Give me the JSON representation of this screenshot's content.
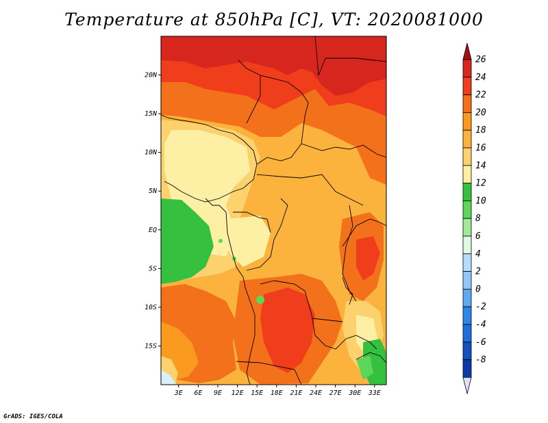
{
  "title": "Temperature at 850hPa [C], VT: 2020081000",
  "credit": "GrADS: IGES/COLA",
  "map": {
    "lat_ticks": [
      {
        "value": 20,
        "label": "20N"
      },
      {
        "value": 15,
        "label": "15N"
      },
      {
        "value": 10,
        "label": "10N"
      },
      {
        "value": 5,
        "label": "5N"
      },
      {
        "value": 0,
        "label": "EQ"
      },
      {
        "value": -5,
        "label": "5S"
      },
      {
        "value": -10,
        "label": "10S"
      },
      {
        "value": -15,
        "label": "15S"
      }
    ],
    "lon_ticks": [
      {
        "value": 3,
        "label": "3E"
      },
      {
        "value": 6,
        "label": "6E"
      },
      {
        "value": 9,
        "label": "9E"
      },
      {
        "value": 12,
        "label": "12E"
      },
      {
        "value": 15,
        "label": "15E"
      },
      {
        "value": 18,
        "label": "18E"
      },
      {
        "value": 21,
        "label": "21E"
      },
      {
        "value": 24,
        "label": "24E"
      },
      {
        "value": 27,
        "label": "27E"
      },
      {
        "value": 30,
        "label": "30E"
      },
      {
        "value": 33,
        "label": "33E"
      }
    ],
    "lon_range": [
      0.3,
      34.8
    ],
    "lat_range": [
      -20,
      25
    ]
  },
  "colorbar": {
    "levels": [
      {
        "label": "26",
        "color": "#d7261e"
      },
      {
        "label": "24",
        "color": "#f03e1c"
      },
      {
        "label": "22",
        "color": "#f4711c"
      },
      {
        "label": "20",
        "color": "#fa9a1e"
      },
      {
        "label": "18",
        "color": "#fbb33d"
      },
      {
        "label": "16",
        "color": "#fcd16e"
      },
      {
        "label": "14",
        "color": "#fdf0a5"
      },
      {
        "label": "12",
        "color": "#35c03f"
      },
      {
        "label": "10",
        "color": "#5ed65a"
      },
      {
        "label": "8",
        "color": "#a2ea99"
      },
      {
        "label": "6",
        "color": "#e1f8e3"
      },
      {
        "label": "4",
        "color": "#b4dcfb"
      },
      {
        "label": "2",
        "color": "#94c7f7"
      },
      {
        "label": "0",
        "color": "#5ea9f0"
      },
      {
        "label": "-2",
        "color": "#2d87e7"
      },
      {
        "label": "-4",
        "color": "#1f6ed9"
      },
      {
        "label": "-6",
        "color": "#1351bd"
      },
      {
        "label": "-8",
        "color": "#0a3ba4"
      }
    ],
    "top_color": "#a50f15",
    "bottom_color": "#08106a",
    "bottom_tip_color": "#dfe0f7"
  }
}
